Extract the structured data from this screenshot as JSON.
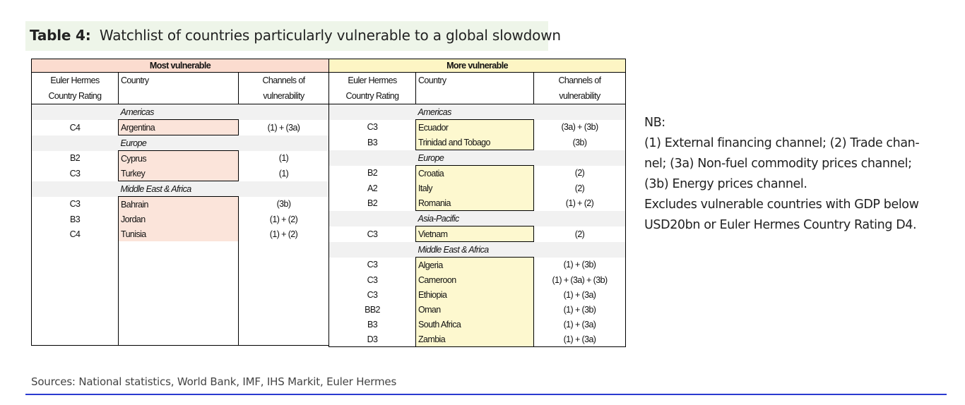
{
  "title": {
    "bold": "Table 4:",
    "text": "Watchlist of countries particularly vulnerable to a global slowdown"
  },
  "columns": {
    "rating_line1": "Euler Hermes",
    "rating_line2": "Country Rating",
    "country": "Country",
    "channels_line1": "Channels of",
    "channels_line2": "vulnerability"
  },
  "most_vulnerable": {
    "header": "Most vulnerable",
    "rows": [
      {
        "region": "Americas"
      },
      {
        "rating": "C4",
        "country": "Argentina",
        "channels": "(1) + (3a)"
      },
      {
        "region": "Europe"
      },
      {
        "rating": "B2",
        "country": "Cyprus",
        "channels": "(1)"
      },
      {
        "rating": "C3",
        "country": "Turkey",
        "channels": "(1)"
      },
      {
        "region": "Middle East & Africa"
      },
      {
        "rating": "C3",
        "country": "Bahrain",
        "channels": "(3b)"
      },
      {
        "rating": "B3",
        "country": "Jordan",
        "channels": "(1) + (2)"
      },
      {
        "rating": "C4",
        "country": "Tunisia",
        "channels": "(1) + (2)"
      },
      {
        "blank": true
      },
      {
        "blank": true
      },
      {
        "blank": true
      },
      {
        "blank": true
      },
      {
        "blank": true
      },
      {
        "blank": true
      },
      {
        "blank": true
      }
    ]
  },
  "more_vulnerable": {
    "header": "More vulnerable",
    "rows": [
      {
        "region": "Americas"
      },
      {
        "rating": "C3",
        "country": "Ecuador",
        "channels": "(3a) + (3b)"
      },
      {
        "rating": "B3",
        "country": "Trinidad and Tobago",
        "channels": "(3b)"
      },
      {
        "region": "Europe"
      },
      {
        "rating": "B2",
        "country": "Croatia",
        "channels": "(2)"
      },
      {
        "rating": "A2",
        "country": "Italy",
        "channels": "(2)"
      },
      {
        "rating": "B2",
        "country": "Romania",
        "channels": "(1) + (2)"
      },
      {
        "region": "Asia-Pacific"
      },
      {
        "rating": "C3",
        "country": "Vietnam",
        "channels": "(2)"
      },
      {
        "region": "Middle East & Africa"
      },
      {
        "rating": "C3",
        "country": "Algeria",
        "channels": "(1) + (3b)"
      },
      {
        "rating": "C3",
        "country": "Cameroon",
        "channels": "(1) + (3a) + (3b)"
      },
      {
        "rating": "C3",
        "country": "Ethiopia",
        "channels": "(1) + (3a)"
      },
      {
        "rating": "BB2",
        "country": "Oman",
        "channels": "(1) + (3b)"
      },
      {
        "rating": "B3",
        "country": "South Africa",
        "channels": "(1) + (3a)"
      },
      {
        "rating": "D3",
        "country": "Zambia",
        "channels": "(1) + (3a)"
      }
    ]
  },
  "notes": {
    "heading": "NB:",
    "lines": [
      "(1) External financing channel; (2) Trade chan-",
      "nel; (3a) Non-fuel commodity prices channel;",
      "(3b) Energy prices channel.",
      "Excludes vulnerable countries with GDP below",
      "USD20bn or Euler Hermes Country Rating D4."
    ]
  },
  "sources": "Sources: National statistics, World Bank, IMF, IHS Markit, Euler Hermes",
  "colors": {
    "most_header_bg": "#fbdccf",
    "most_country_bg": "#fbe4da",
    "more_header_bg": "#fdf5c4",
    "more_country_bg": "#fdf8cf",
    "title_band_bg": "#eef5e9",
    "rule": "#2a3bd0"
  }
}
